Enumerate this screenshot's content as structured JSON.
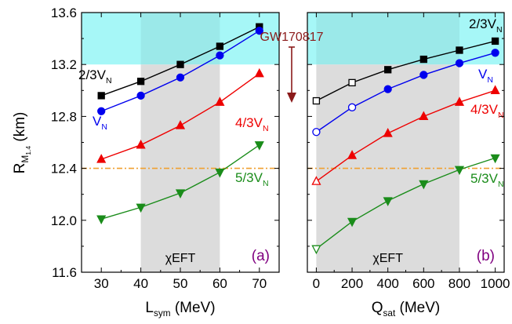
{
  "chart_data": [
    {
      "type": "line",
      "panel_tag": "(a)",
      "title": "",
      "xlabel": "L",
      "xlabel_sub": "sym",
      "xlabel_unit": " (MeV)",
      "ylabel": "R",
      "ylabel_sub": "M",
      "ylabel_subsub": "1.4",
      "ylabel_unit": " (km)",
      "xlim": [
        25,
        75
      ],
      "ylim": [
        11.6,
        13.6
      ],
      "x_ticks": [
        30,
        40,
        50,
        60,
        70
      ],
      "y_ticks": [
        11.6,
        12.0,
        12.4,
        12.8,
        13.2,
        13.6
      ],
      "y_tick_labels": [
        "11.6",
        "12.0",
        "12.4",
        "12.8",
        "13.2",
        "13.6"
      ],
      "grid": false,
      "shaded_band_x": [
        40,
        60
      ],
      "shaded_band_label": "χEFT",
      "gw_band_y": [
        13.2,
        13.6
      ],
      "reference_line_y": 12.4,
      "series": [
        {
          "name": "2/3V",
          "name_sub": "N",
          "color": "#000000",
          "marker": "square",
          "x": [
            30,
            40,
            50,
            60,
            70
          ],
          "y": [
            12.96,
            13.07,
            13.2,
            13.34,
            13.49
          ]
        },
        {
          "name": "V",
          "name_sub": "N",
          "color": "#0000ee",
          "marker": "circle",
          "x": [
            30,
            40,
            50,
            60,
            70
          ],
          "y": [
            12.84,
            12.96,
            13.1,
            13.27,
            13.46
          ]
        },
        {
          "name": "4/3V",
          "name_sub": "N",
          "color": "#ee0000",
          "marker": "triangle-up",
          "x": [
            30,
            40,
            50,
            60,
            70
          ],
          "y": [
            12.47,
            12.58,
            12.73,
            12.91,
            13.13
          ]
        },
        {
          "name": "5/3V",
          "name_sub": "N",
          "color": "#1a8c1a",
          "marker": "triangle-down",
          "x": [
            30,
            40,
            50,
            60,
            70
          ],
          "y": [
            12.01,
            12.1,
            12.21,
            12.37,
            12.58
          ]
        }
      ]
    },
    {
      "type": "line",
      "panel_tag": "(b)",
      "title": "",
      "xlabel": "Q",
      "xlabel_sub": "sat",
      "xlabel_unit": " (MeV)",
      "xlim": [
        -50,
        1050
      ],
      "ylim": [
        11.6,
        13.6
      ],
      "x_ticks": [
        0,
        200,
        400,
        600,
        800,
        1000
      ],
      "grid": false,
      "shaded_band_x": [
        0,
        800
      ],
      "shaded_band_label": "χEFT",
      "gw_band_y": [
        13.2,
        13.6
      ],
      "reference_line_y": 12.4,
      "series": [
        {
          "name": "2/3V",
          "name_sub": "N",
          "color": "#000000",
          "marker": "square",
          "x": [
            0,
            200,
            400,
            600,
            800,
            1000
          ],
          "y": [
            12.92,
            13.06,
            13.16,
            13.24,
            13.31,
            13.38
          ],
          "open_points": [
            0,
            1
          ]
        },
        {
          "name": "V",
          "name_sub": "N",
          "color": "#0000ee",
          "marker": "circle",
          "x": [
            0,
            200,
            400,
            600,
            800,
            1000
          ],
          "y": [
            12.68,
            12.87,
            13.01,
            13.12,
            13.21,
            13.29
          ],
          "open_points": [
            0,
            1
          ]
        },
        {
          "name": "4/3V",
          "name_sub": "N",
          "color": "#ee0000",
          "marker": "triangle-up",
          "x": [
            0,
            200,
            400,
            600,
            800,
            1000
          ],
          "y": [
            12.3,
            12.5,
            12.67,
            12.8,
            12.91,
            13.0
          ],
          "open_points": [
            0
          ]
        },
        {
          "name": "5/3V",
          "name_sub": "N",
          "color": "#1a8c1a",
          "marker": "triangle-down",
          "x": [
            0,
            200,
            400,
            600,
            800,
            1000
          ],
          "y": [
            11.78,
            11.99,
            12.15,
            12.28,
            12.39,
            12.48
          ],
          "open_points": [
            0
          ]
        }
      ]
    }
  ],
  "annotation": {
    "text": "GW170817",
    "color": "#8b1a1a"
  },
  "colors": {
    "gw_band": "#a6f7f7",
    "shaded_band": "#dcdcdc",
    "reference_line": "#f0a030",
    "panel_tag": "#800080"
  }
}
